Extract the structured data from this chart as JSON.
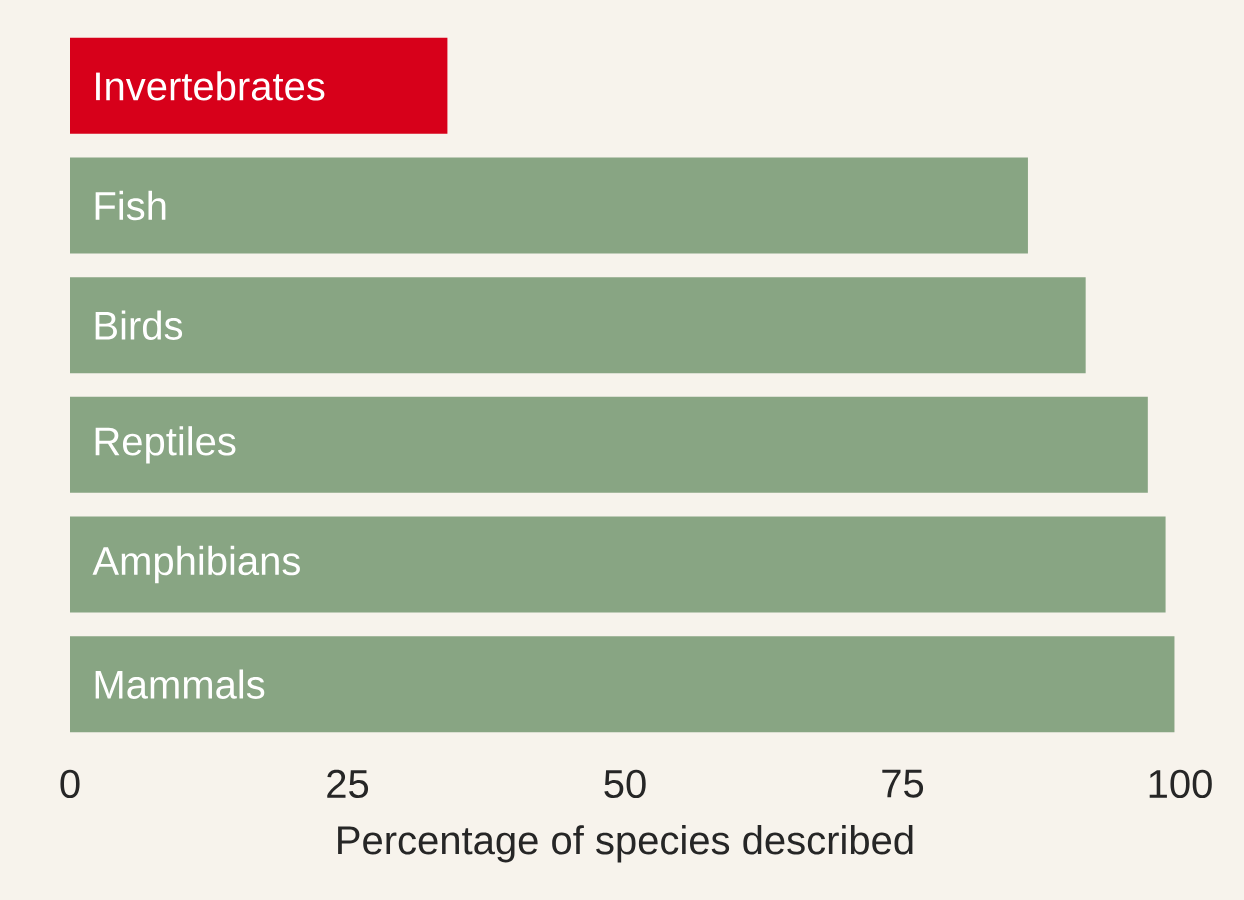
{
  "chart_data": {
    "type": "bar",
    "orientation": "horizontal",
    "xlabel": "Percentage of species described",
    "categories": [
      "Invertebrates",
      "Fish",
      "Birds",
      "Reptiles",
      "Amphibians",
      "Mammals"
    ],
    "values": [
      34,
      86.3,
      91.5,
      97.1,
      98.7,
      99.5
    ],
    "colors": [
      "#d7001a",
      "#88a583",
      "#88a583",
      "#88a583",
      "#88a583",
      "#88a583"
    ],
    "xlim": [
      0,
      100
    ],
    "xticks": [
      0,
      25,
      50,
      75,
      100
    ],
    "grid": false
  }
}
